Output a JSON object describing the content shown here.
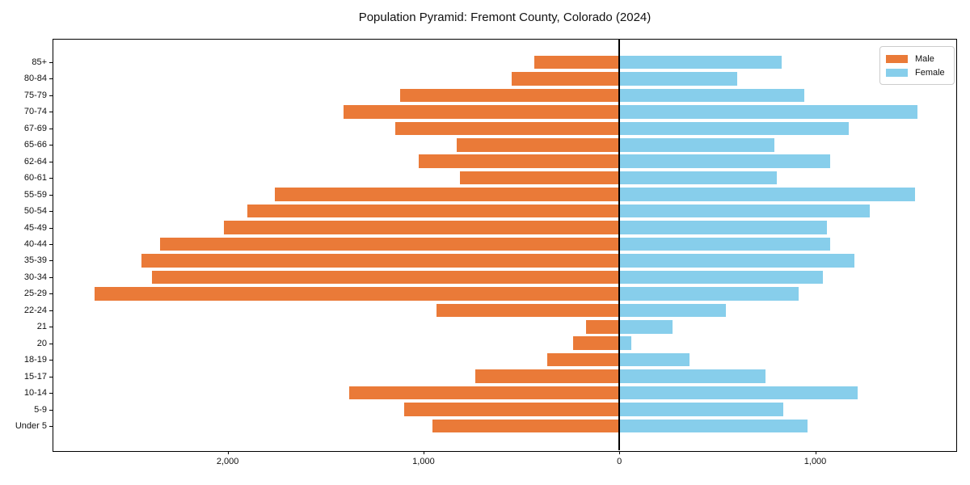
{
  "chart": {
    "title": "Population Pyramid: Fremont County, Colorado (2024)",
    "legend": {
      "male_label": "Male",
      "female_label": "Female"
    },
    "colors": {
      "male": "#ea7a38",
      "female": "#87ceeb",
      "axis": "#000000",
      "legend_border": "#cccccc",
      "background": "#ffffff"
    }
  },
  "chart_data": {
    "type": "bar",
    "subtype": "population-pyramid",
    "title": "Population Pyramid: Fremont County, Colorado (2024)",
    "xlabel": "",
    "ylabel": "",
    "grid": false,
    "legend_position": "upper right",
    "categories": [
      "85+",
      "80-84",
      "75-79",
      "70-74",
      "67-69",
      "65-66",
      "62-64",
      "60-61",
      "55-59",
      "50-54",
      "45-49",
      "40-44",
      "35-39",
      "30-34",
      "25-29",
      "22-24",
      "21",
      "20",
      "18-19",
      "15-17",
      "10-14",
      "5-9",
      "Under 5"
    ],
    "series": [
      {
        "name": "Male",
        "side": "left",
        "color": "#ea7a38",
        "values": [
          435,
          550,
          1120,
          1410,
          1145,
          830,
          1025,
          815,
          1760,
          1900,
          2020,
          2345,
          2440,
          2385,
          2680,
          935,
          170,
          235,
          370,
          735,
          1380,
          1100,
          955
        ]
      },
      {
        "name": "Female",
        "side": "right",
        "color": "#87ceeb",
        "values": [
          830,
          600,
          945,
          1520,
          1170,
          790,
          1075,
          805,
          1510,
          1280,
          1060,
          1075,
          1200,
          1040,
          915,
          545,
          270,
          60,
          360,
          745,
          1215,
          835,
          960
        ]
      }
    ],
    "x_axis": {
      "min": -2890,
      "max": 1720,
      "ticks": [
        {
          "value": -2000,
          "label": "2,000"
        },
        {
          "value": -1000,
          "label": "1,000"
        },
        {
          "value": 0,
          "label": "0"
        },
        {
          "value": 1000,
          "label": "1,000"
        }
      ]
    }
  }
}
